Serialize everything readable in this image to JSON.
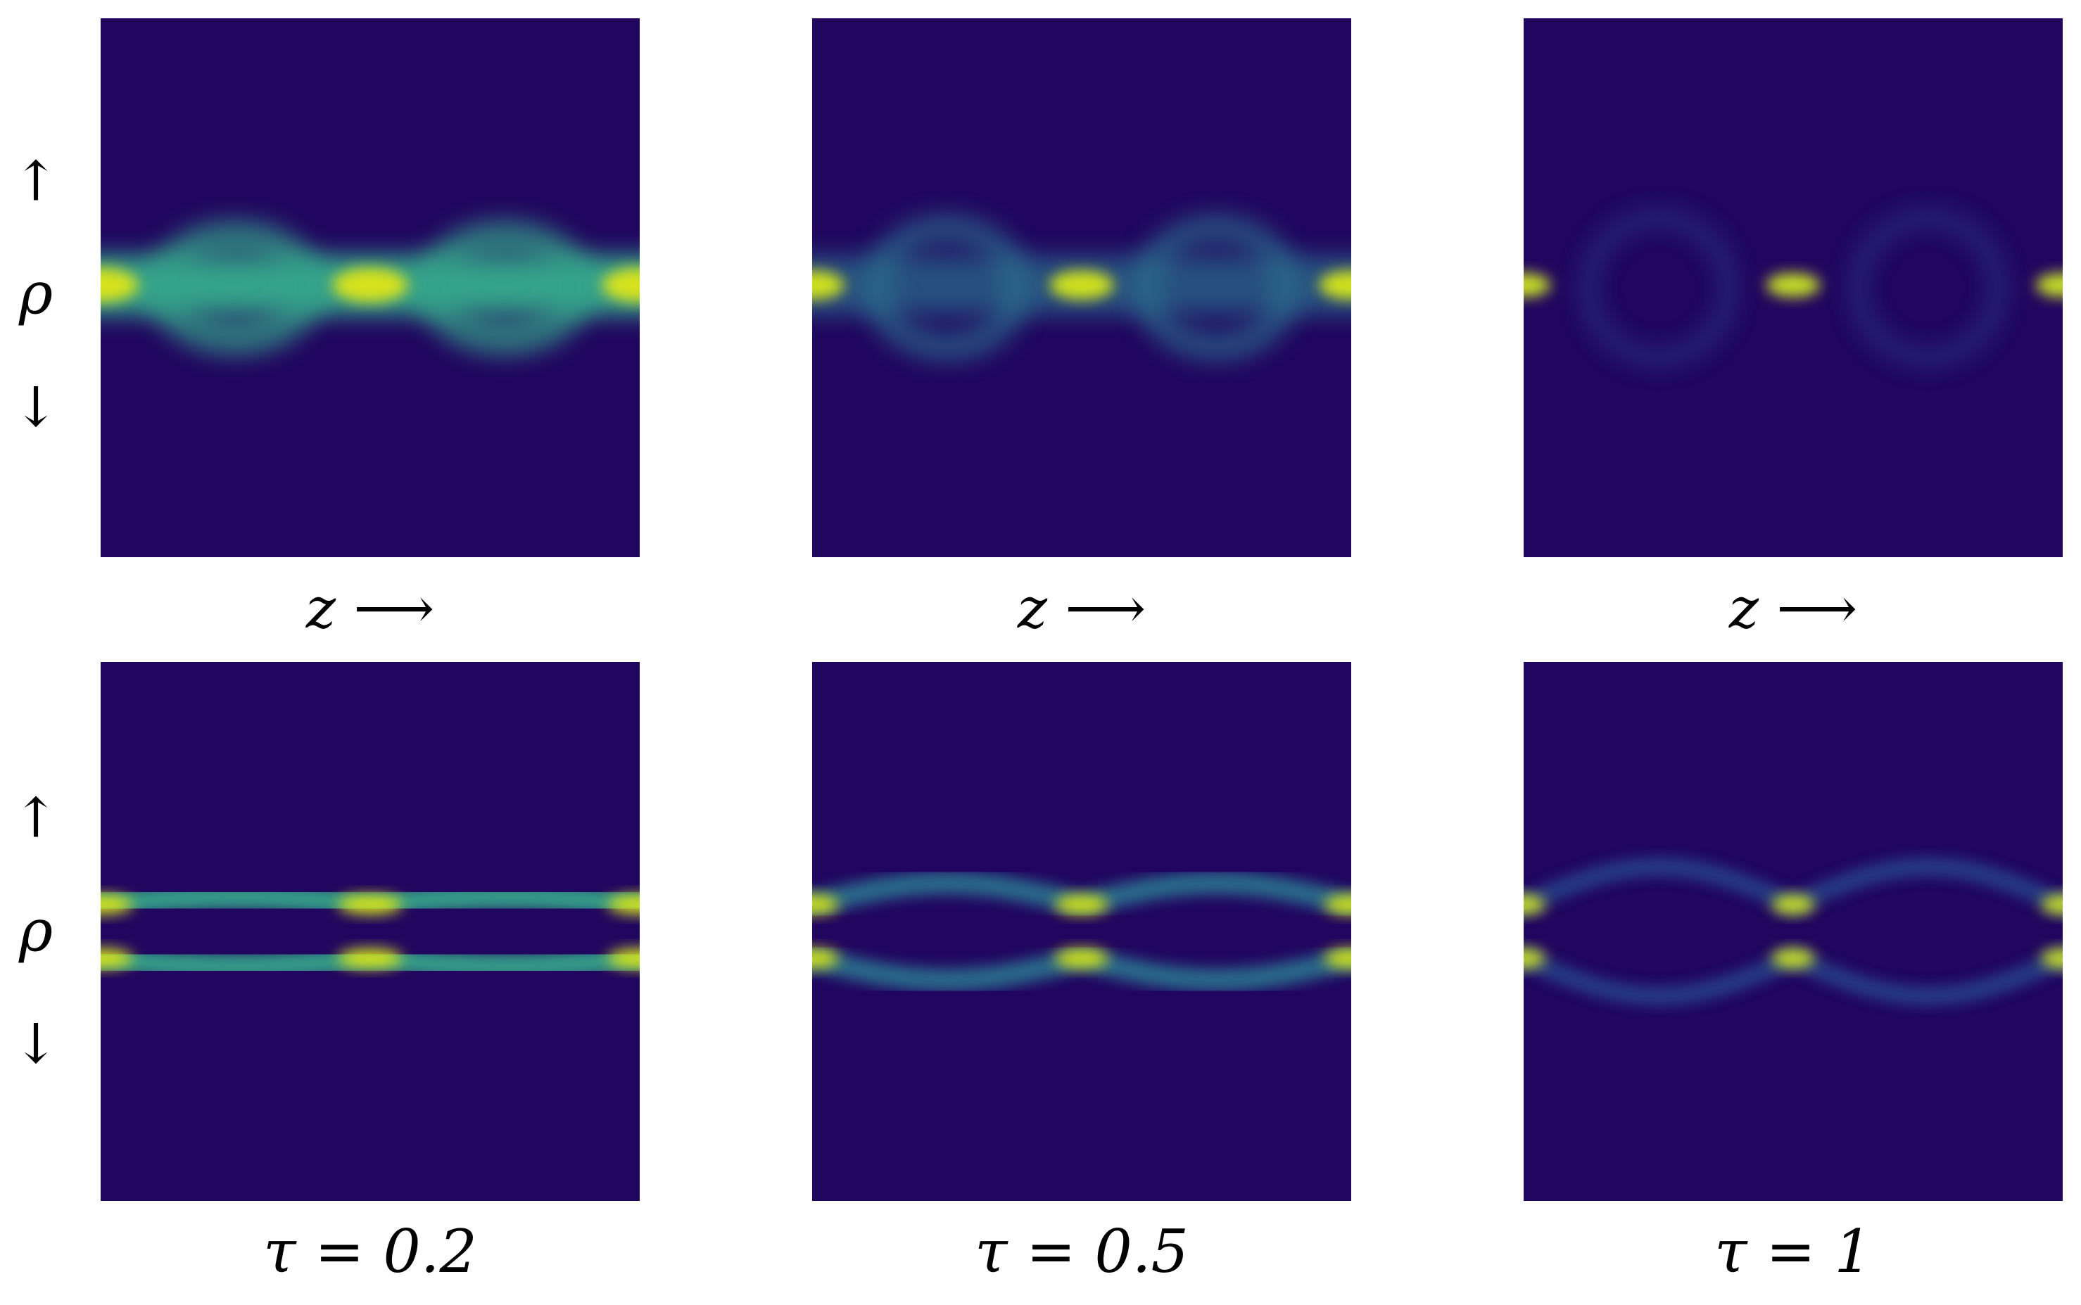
{
  "row_labels": [
    {
      "up": "↑",
      "symbol": "ρ",
      "down": "↓"
    },
    {
      "up": "↑",
      "symbol": "ρ",
      "down": "↓"
    }
  ],
  "x_labels": [
    "z ⟶",
    "z ⟶",
    "z ⟶"
  ],
  "captions": [
    "τ = 0.2",
    "τ = 0.5",
    "τ = 1"
  ]
}
